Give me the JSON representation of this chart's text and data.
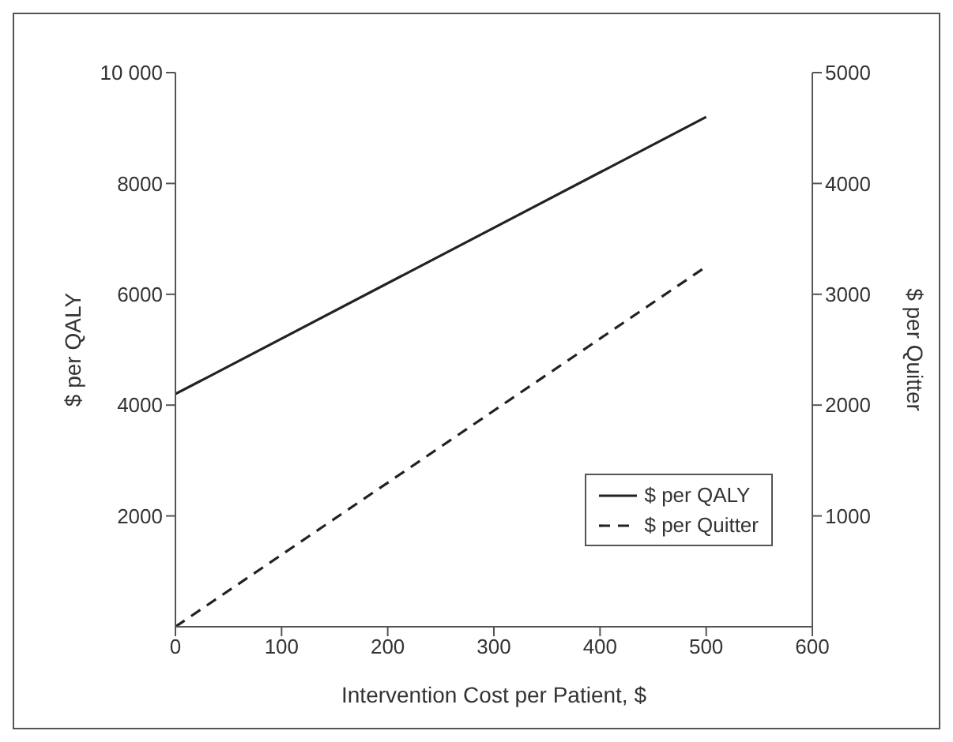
{
  "chart_data": {
    "type": "line",
    "xlabel": "Intervention Cost per Patient, $",
    "ylabel": "$ per QALY",
    "y2label": "$ per Quitter",
    "x": [
      0,
      500
    ],
    "series": [
      {
        "name": "$ per QALY",
        "color": "#222222",
        "values": [
          4200,
          9200
        ],
        "line_style": "solid"
      },
      {
        "name": "$ per Quitter",
        "color": "#222222",
        "values": [
          0,
          3250
        ],
        "axis": "y2",
        "line_style": "dashed"
      }
    ],
    "xlim": [
      0,
      600
    ],
    "xticks": [
      0,
      100,
      200,
      300,
      400,
      500,
      600
    ],
    "ylim": [
      0,
      10000
    ],
    "yticks": [
      2000,
      4000,
      6000,
      8000,
      {
        "value": 10000,
        "label": "10 000"
      }
    ],
    "y2lim": [
      0,
      5000
    ],
    "y2ticks": [
      1000,
      2000,
      3000,
      4000,
      5000
    ],
    "legend": "bottom right",
    "marker": "none"
  }
}
